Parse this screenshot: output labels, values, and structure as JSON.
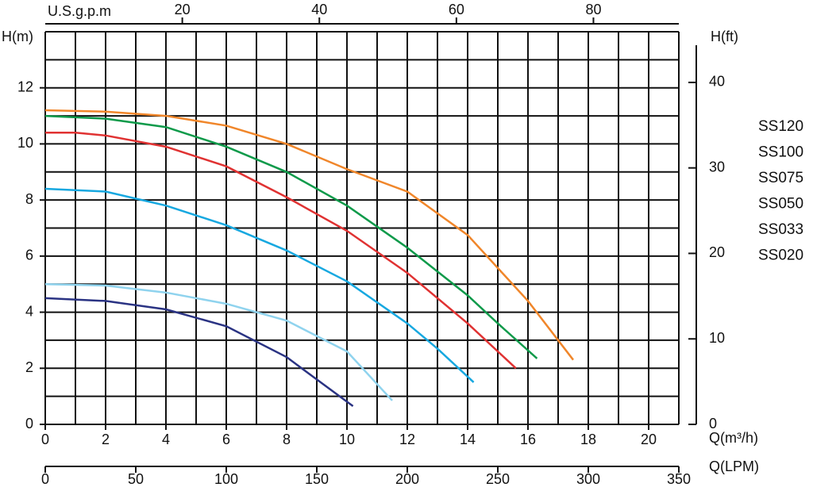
{
  "chart_data": {
    "type": "line",
    "y_label": "H(m)",
    "y2_label": "H(ft)",
    "x_label": "Q(m³/h)",
    "xlim": [
      0,
      21
    ],
    "xticks": [
      0,
      2,
      4,
      6,
      8,
      10,
      12,
      14,
      16,
      18,
      20
    ],
    "xgrid": [
      0,
      1,
      2,
      3,
      4,
      5,
      6,
      7,
      8,
      9,
      10,
      11,
      12,
      13,
      14,
      15,
      16,
      17,
      18,
      19,
      20,
      21
    ],
    "ylim": [
      0,
      14
    ],
    "yticks": [
      0,
      2,
      4,
      6,
      8,
      10,
      12
    ],
    "ygrid": [
      0,
      1,
      2,
      3,
      4,
      5,
      6,
      7,
      8,
      9,
      10,
      11,
      12,
      13,
      14
    ],
    "y2lim": [
      0,
      45.93
    ],
    "y2ticks": [
      0,
      10,
      20,
      30,
      40
    ],
    "top_axis": {
      "label": "U.S.g.p.m",
      "lim": [
        0,
        92.46
      ],
      "ticks": [
        20,
        40,
        60,
        80
      ]
    },
    "bottom_axis2": {
      "label": "Q(LPM)",
      "lim": [
        0,
        350
      ],
      "ticks": [
        0,
        50,
        100,
        150,
        200,
        250,
        300,
        350
      ]
    },
    "grid": true,
    "series": [
      {
        "name": "SS120",
        "color": "#f0862a",
        "x": [
          0,
          2,
          4,
          6,
          8,
          10,
          12,
          14,
          16,
          17.5
        ],
        "values": [
          11.2,
          11.15,
          11.0,
          10.65,
          10.0,
          9.1,
          8.3,
          6.75,
          4.4,
          2.3
        ]
      },
      {
        "name": "SS100",
        "color": "#0e9a4a",
        "x": [
          0,
          2,
          4,
          6,
          8,
          10,
          12,
          14,
          15,
          16.3
        ],
        "values": [
          11.0,
          10.9,
          10.6,
          9.9,
          9.0,
          7.8,
          6.3,
          4.6,
          3.6,
          2.35
        ]
      },
      {
        "name": "SS075",
        "color": "#e03232",
        "x": [
          0,
          1,
          2,
          4,
          6,
          8,
          10,
          12,
          14,
          15.6
        ],
        "values": [
          10.4,
          10.4,
          10.3,
          9.9,
          9.2,
          8.1,
          6.9,
          5.4,
          3.6,
          2.0
        ]
      },
      {
        "name": "SS050",
        "color": "#17a8e0",
        "x": [
          0,
          2,
          4,
          6,
          8,
          10,
          12,
          13,
          14.2
        ],
        "values": [
          8.4,
          8.3,
          7.8,
          7.1,
          6.2,
          5.1,
          3.6,
          2.7,
          1.5
        ]
      },
      {
        "name": "SS033",
        "color": "#8fd3ee",
        "x": [
          0,
          2,
          4,
          6,
          8,
          10,
          11.5
        ],
        "values": [
          5.0,
          4.95,
          4.7,
          4.3,
          3.7,
          2.6,
          0.85
        ]
      },
      {
        "name": "SS020",
        "color": "#2a3383",
        "x": [
          0,
          2,
          4,
          6,
          8,
          9,
          10.2
        ],
        "values": [
          4.5,
          4.4,
          4.1,
          3.5,
          2.4,
          1.6,
          0.65
        ]
      }
    ]
  }
}
